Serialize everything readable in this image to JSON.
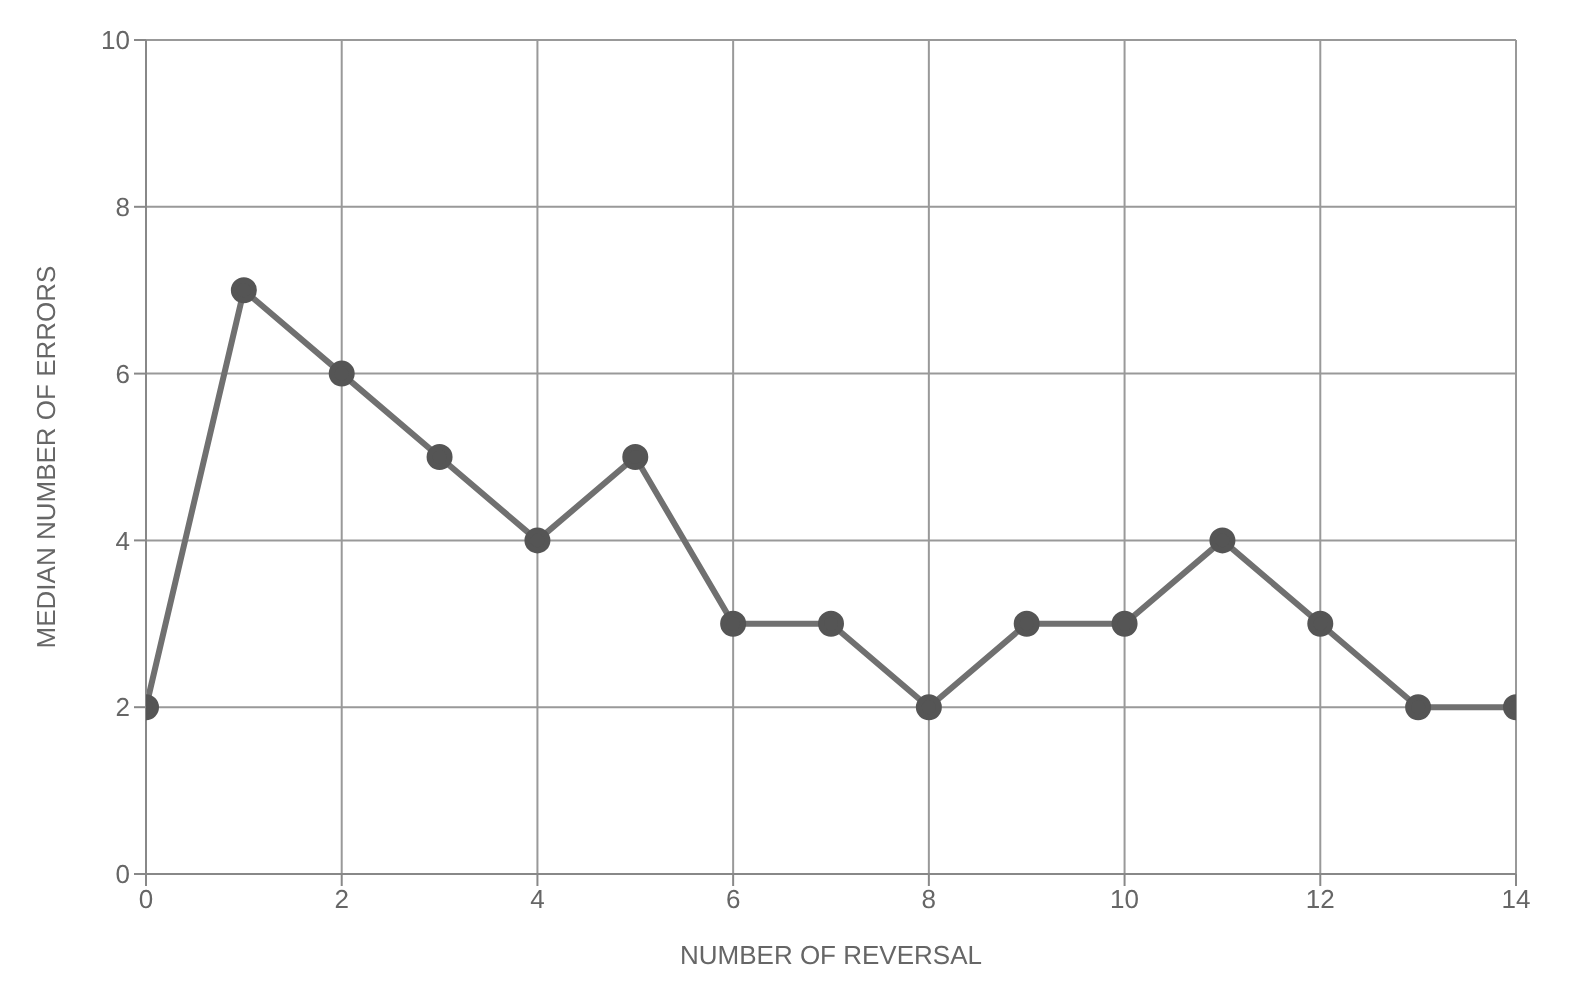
{
  "chart_data": {
    "type": "line",
    "xlabel": "NUMBER OF REVERSAL",
    "ylabel": "MEDIAN NUMBER OF ERRORS",
    "x": [
      0,
      1,
      2,
      3,
      4,
      5,
      6,
      7,
      8,
      9,
      10,
      11,
      12,
      13,
      14
    ],
    "series": [
      {
        "color": "#707070",
        "values": [
          2,
          7,
          6,
          5,
          4,
          5,
          3,
          3,
          2,
          3,
          3,
          4,
          3,
          2,
          2
        ]
      }
    ],
    "xlim": [
      0,
      14
    ],
    "xticks": [
      0,
      2,
      4,
      6,
      8,
      10,
      12,
      14
    ],
    "ylim": [
      0,
      10
    ],
    "yticks": [
      0,
      2,
      4,
      6,
      8,
      10
    ],
    "grid": true,
    "marker": "circle",
    "line_style": "solid"
  }
}
